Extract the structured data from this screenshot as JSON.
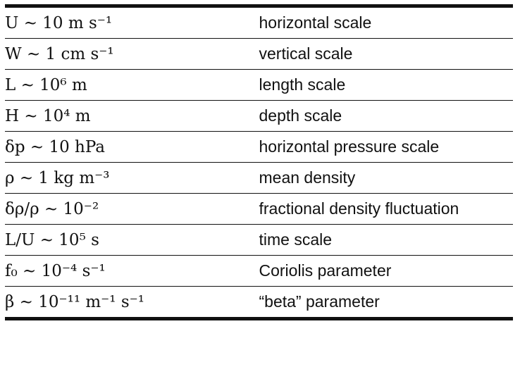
{
  "table": {
    "rows": [
      {
        "expression": "U ∼ 10 m s⁻¹",
        "description": "horizontal scale"
      },
      {
        "expression": "W ∼ 1 cm s⁻¹",
        "description": "vertical scale"
      },
      {
        "expression": "L ∼ 10⁶ m",
        "description": "length scale"
      },
      {
        "expression": "H ∼ 10⁴ m",
        "description": "depth scale"
      },
      {
        "expression": "δp ∼ 10 hPa",
        "description": "horizontal pressure scale"
      },
      {
        "expression": "ρ ∼ 1 kg m⁻³",
        "description": "mean density"
      },
      {
        "expression": "δρ/ρ ∼ 10⁻²",
        "description": "fractional density fluctuation"
      },
      {
        "expression": "L/U ∼ 10⁵ s",
        "description": "time scale"
      },
      {
        "expression": "f₀ ∼ 10⁻⁴ s⁻¹",
        "description": "Coriolis parameter"
      },
      {
        "expression": "β ∼ 10⁻¹¹ m⁻¹ s⁻¹",
        "description": "“beta” parameter"
      }
    ]
  }
}
